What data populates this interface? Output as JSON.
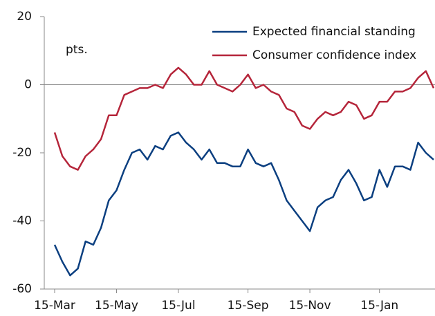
{
  "chart_data": {
    "type": "line",
    "annotation": "pts.",
    "categories": [
      "15-Mar",
      null,
      null,
      null,
      null,
      null,
      null,
      null,
      "15-May",
      null,
      null,
      null,
      null,
      null,
      null,
      null,
      "15-Jul",
      null,
      null,
      null,
      null,
      null,
      null,
      null,
      null,
      "15-Sep",
      null,
      null,
      null,
      null,
      null,
      null,
      null,
      "15-Nov",
      null,
      null,
      null,
      null,
      null,
      null,
      null,
      null,
      "15-Jan",
      null,
      null,
      null,
      null,
      null,
      null,
      null
    ],
    "series": [
      {
        "name": "Expected financial standing",
        "color": "#0b3f80",
        "values": [
          -47,
          -52,
          -56,
          -54,
          -46,
          -47,
          -42,
          -34,
          -31,
          -25,
          -20,
          -19,
          -22,
          -18,
          -19,
          -15,
          -14,
          -17,
          -19,
          -22,
          -19,
          -23,
          -23,
          -24,
          -24,
          -19,
          -23,
          -24,
          -23,
          -28,
          -34,
          -37,
          -40,
          -43,
          -36,
          -34,
          -33,
          -28,
          -25,
          -29,
          -34,
          -33,
          -25,
          -30,
          -24,
          -24,
          -25,
          -17,
          -20,
          -22
        ]
      },
      {
        "name": "Consumer confidence index",
        "color": "#b5253a",
        "values": [
          -14,
          -21,
          -24,
          -25,
          -21,
          -19,
          -16,
          -9,
          -9,
          -3,
          -2,
          -1,
          -1,
          0,
          -1,
          3,
          5,
          3,
          0,
          0,
          4,
          0,
          -1,
          -2,
          0,
          3,
          -1,
          0,
          -2,
          -3,
          -7,
          -8,
          -12,
          -13,
          -10,
          -8,
          -9,
          -8,
          -5,
          -6,
          -10,
          -9,
          -5,
          -5,
          -2,
          -2,
          -1,
          2,
          4,
          -1
        ]
      }
    ],
    "ylim": [
      -60,
      20
    ],
    "yticks": [
      -60,
      -40,
      -20,
      0,
      20
    ],
    "legend": "top-right"
  }
}
